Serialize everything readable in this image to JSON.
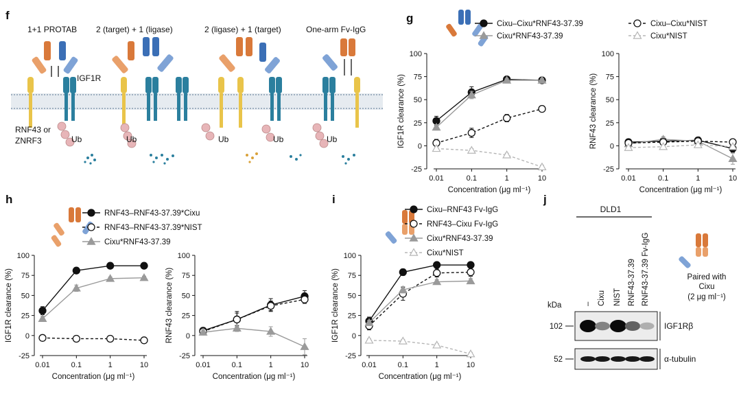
{
  "panels": {
    "f": "f",
    "g": "g",
    "h": "h",
    "i": "i",
    "j": "j"
  },
  "schematic": {
    "titles": [
      "1+1 PROTAB",
      "2 (target) + 1 (ligase)",
      "2 (ligase) + 1 (target)",
      "One-arm Fv-IgG"
    ],
    "igf1r_label": "IGF1R",
    "rnf_label_1": "RNF43 or",
    "rnf_label_2": "ZNRF3",
    "ub": "Ub"
  },
  "colors": {
    "black": "#111111",
    "grey": "#9a9a9a",
    "light": "#b5b5b5",
    "orange": "#d9793a",
    "blue": "#3b6fb6",
    "teal": "#2b7f9e",
    "yellow": "#e9c44a",
    "pink": "#e7b5b8",
    "membrane": "#c9d3dd"
  },
  "chart_data": [
    {
      "id": "g-left",
      "type": "line",
      "xlabel": "Concentration (μg ml⁻¹)",
      "ylabel": "IGF1R clearance (%)",
      "x": [
        0.01,
        0.1,
        1,
        10
      ],
      "xticks": [
        "0.01",
        "0.1",
        "1",
        "10"
      ],
      "ylim": [
        -25,
        100
      ],
      "yticks": [
        -25,
        0,
        25,
        50,
        75,
        100
      ],
      "legend": [
        {
          "name": "Cixu–Cixu*RNF43-37.39",
          "style": "filled-circle-solid"
        },
        {
          "name": "Cixu*RNF43-37.39",
          "style": "filled-triangle-grey"
        },
        {
          "name": "Cixu–Cixu*NIST",
          "style": "open-circle-dashed"
        },
        {
          "name": "Cixu*NIST",
          "style": "open-triangle-lightdashed"
        }
      ],
      "series": [
        {
          "name": "Cixu–Cixu*RNF43-37.39",
          "style": "filled-circle-solid",
          "values": [
            27,
            58,
            72,
            71
          ],
          "err": [
            5,
            6,
            3,
            2
          ]
        },
        {
          "name": "Cixu*RNF43-37.39",
          "style": "filled-triangle-grey",
          "values": [
            20,
            55,
            71,
            71
          ],
          "err": [
            3,
            4,
            2,
            2
          ]
        },
        {
          "name": "Cixu–Cixu*NIST",
          "style": "open-circle-dashed",
          "values": [
            3,
            14,
            30,
            40
          ],
          "err": [
            4,
            5,
            4,
            2
          ]
        },
        {
          "name": "Cixu*NIST",
          "style": "open-triangle-lightdashed",
          "values": [
            -3,
            -5,
            -10,
            -23
          ],
          "err": [
            2,
            2,
            2,
            2
          ]
        }
      ]
    },
    {
      "id": "g-right",
      "type": "line",
      "xlabel": "Concentration (μg ml⁻¹)",
      "ylabel": "RNF43 clearance (%)",
      "x": [
        0.01,
        0.1,
        1,
        10
      ],
      "xticks": [
        "0.01",
        "0.1",
        "1",
        "10"
      ],
      "ylim": [
        -25,
        100
      ],
      "yticks": [
        -25,
        0,
        25,
        50,
        75,
        100
      ],
      "series": [
        {
          "name": "Cixu–Cixu*RNF43-37.39",
          "style": "filled-circle-solid",
          "values": [
            4,
            5,
            6,
            -3
          ],
          "err": [
            3,
            3,
            3,
            4
          ]
        },
        {
          "name": "Cixu*RNF43-37.39",
          "style": "filled-triangle-grey",
          "values": [
            2,
            7,
            5,
            -14
          ],
          "err": [
            3,
            3,
            3,
            6
          ]
        },
        {
          "name": "Cixu–Cixu*NIST",
          "style": "open-circle-dashed",
          "values": [
            3,
            4,
            5,
            4
          ],
          "err": [
            2,
            2,
            2,
            2
          ]
        },
        {
          "name": "Cixu*NIST",
          "style": "open-triangle-lightdashed",
          "values": [
            -2,
            -1,
            1,
            -1
          ],
          "err": [
            2,
            2,
            2,
            2
          ]
        }
      ]
    },
    {
      "id": "h-left",
      "type": "line",
      "xlabel": "Concentration (μg ml⁻¹)",
      "ylabel": "IGF1R clearance (%)",
      "x": [
        0.01,
        0.1,
        1,
        10
      ],
      "xticks": [
        "0.01",
        "0.1",
        "1",
        "10"
      ],
      "ylim": [
        -25,
        100
      ],
      "yticks": [
        -25,
        0,
        25,
        50,
        75,
        100
      ],
      "legend": [
        {
          "name": "RNF43–RNF43-37.39*Cixu",
          "style": "filled-circle-solid"
        },
        {
          "name": "RNF43–RNF43-37.39*NIST",
          "style": "open-circle-dashed"
        },
        {
          "name": "Cixu*RNF43-37.39",
          "style": "filled-triangle-grey"
        }
      ],
      "series": [
        {
          "name": "RNF43–RNF43-37.39*Cixu",
          "style": "filled-circle-solid",
          "values": [
            31,
            81,
            87,
            87
          ],
          "err": [
            5,
            2,
            2,
            2
          ]
        },
        {
          "name": "Cixu*RNF43-37.39",
          "style": "filled-triangle-grey",
          "values": [
            21,
            59,
            71,
            72
          ],
          "err": [
            3,
            4,
            2,
            2
          ]
        },
        {
          "name": "RNF43–RNF43-37.39*NIST",
          "style": "open-circle-dashed",
          "values": [
            -3,
            -4,
            -4,
            -6
          ],
          "err": [
            1,
            1,
            1,
            1
          ]
        }
      ]
    },
    {
      "id": "h-right",
      "type": "line",
      "xlabel": "Concentration (μg ml⁻¹)",
      "ylabel": "RNF43 clearance (%)",
      "x": [
        0.01,
        0.1,
        1,
        10
      ],
      "xticks": [
        "0.01",
        "0.1",
        "1",
        "10"
      ],
      "ylim": [
        -25,
        100
      ],
      "yticks": [
        -25,
        0,
        25,
        50,
        75,
        100
      ],
      "series": [
        {
          "name": "RNF43–RNF43-37.39*Cixu",
          "style": "filled-circle-solid",
          "values": [
            6,
            20,
            38,
            49
          ],
          "err": [
            3,
            10,
            8,
            7
          ]
        },
        {
          "name": "RNF43–RNF43-37.39*NIST",
          "style": "open-circle-dashed",
          "values": [
            5,
            20,
            37,
            45
          ],
          "err": [
            3,
            8,
            6,
            5
          ]
        },
        {
          "name": "Cixu*RNF43-37.39",
          "style": "filled-triangle-grey",
          "values": [
            4,
            9,
            5,
            -14
          ],
          "err": [
            3,
            4,
            6,
            10
          ]
        }
      ]
    },
    {
      "id": "i",
      "type": "line",
      "xlabel": "Concentration (μg ml⁻¹)",
      "ylabel": "IGF1R clearance (%)",
      "x": [
        0.01,
        0.1,
        1,
        10
      ],
      "xticks": [
        "0.01",
        "0.1",
        "1",
        "10"
      ],
      "ylim": [
        -25,
        100
      ],
      "yticks": [
        -25,
        0,
        25,
        50,
        75,
        100
      ],
      "legend": [
        {
          "name": "Cixu–RNF43 Fv-IgG",
          "style": "filled-circle-solid"
        },
        {
          "name": "RNF43–Cixu Fv-IgG",
          "style": "open-circle-dashed"
        },
        {
          "name": "Cixu*RNF43-37.39",
          "style": "filled-triangle-grey"
        },
        {
          "name": "Cixu*NIST",
          "style": "open-triangle-lightdashed"
        }
      ],
      "series": [
        {
          "name": "Cixu–RNF43 Fv-IgG",
          "style": "filled-circle-solid",
          "values": [
            18,
            79,
            88,
            88
          ],
          "err": [
            5,
            4,
            3,
            3
          ]
        },
        {
          "name": "RNF43–Cixu Fv-IgG",
          "style": "open-circle-dashed",
          "values": [
            12,
            52,
            78,
            79
          ],
          "err": [
            5,
            8,
            5,
            5
          ]
        },
        {
          "name": "Cixu*RNF43-37.39",
          "style": "filled-triangle-grey",
          "values": [
            16,
            57,
            67,
            68
          ],
          "err": [
            3,
            4,
            3,
            3
          ]
        },
        {
          "name": "Cixu*NIST",
          "style": "open-triangle-lightdashed",
          "values": [
            -6,
            -7,
            -12,
            -23
          ],
          "err": [
            2,
            2,
            2,
            2
          ]
        }
      ]
    }
  ],
  "blot": {
    "title": "DLD1",
    "kda": "kDa",
    "lanes": [
      "–",
      "Cixu",
      "NIST",
      "RNF43-37.39",
      "RNF43-37.39 Fv-IgG"
    ],
    "markers": [
      "102",
      "52"
    ],
    "bands": [
      "IGF1Rβ",
      "α-tubulin"
    ],
    "igf1r_intensity": [
      1.0,
      0.45,
      1.0,
      0.6,
      0.25
    ],
    "tubulin_intensity": [
      1,
      1,
      1,
      1,
      1
    ],
    "note_1": "Paired with",
    "note_2": "Cixu",
    "note_3": "(2 μg ml⁻¹)"
  }
}
